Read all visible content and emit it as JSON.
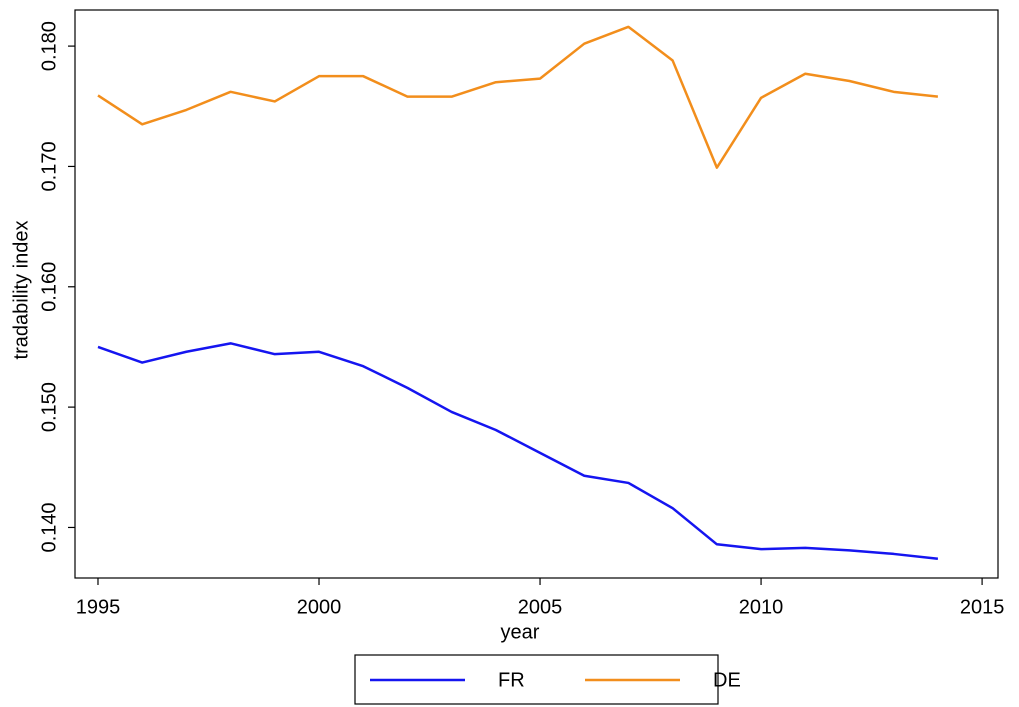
{
  "chart_data": {
    "type": "line",
    "x_label": "year",
    "y_label": "tradability index",
    "x": [
      1995,
      1996,
      1997,
      1998,
      1999,
      2000,
      2001,
      2002,
      2003,
      2004,
      2005,
      2006,
      2007,
      2008,
      2009,
      2010,
      2011,
      2012,
      2013,
      2014
    ],
    "series": [
      {
        "name": "FR",
        "color": "#1515f0",
        "values": [
          0.155,
          0.1537,
          0.1546,
          0.1553,
          0.1544,
          0.1546,
          0.1534,
          0.1516,
          0.1496,
          0.1481,
          0.1462,
          0.1443,
          0.1437,
          0.1416,
          0.1386,
          0.1382,
          0.1383,
          0.1381,
          0.1378,
          0.1374
        ]
      },
      {
        "name": "DE",
        "color": "#f28e1c",
        "values": [
          0.1759,
          0.1735,
          0.1747,
          0.1762,
          0.1754,
          0.1775,
          0.1775,
          0.1758,
          0.1758,
          0.177,
          0.1773,
          0.1802,
          0.1816,
          0.1788,
          0.1699,
          0.1757,
          0.1777,
          0.1771,
          0.1762,
          0.1758
        ]
      }
    ],
    "xlim": [
      1994.48,
      2015.36
    ],
    "xticks": [
      1995,
      2000,
      2005,
      2010,
      2015
    ],
    "ylim": [
      0.1358,
      0.183
    ],
    "yticks": [
      {
        "value": 0.14,
        "label": "0.140"
      },
      {
        "value": 0.15,
        "label": "0.150"
      },
      {
        "value": 0.16,
        "label": "0.160"
      },
      {
        "value": 0.17,
        "label": "0.170"
      },
      {
        "value": 0.18,
        "label": "0.180"
      }
    ],
    "legend": "bottom"
  }
}
